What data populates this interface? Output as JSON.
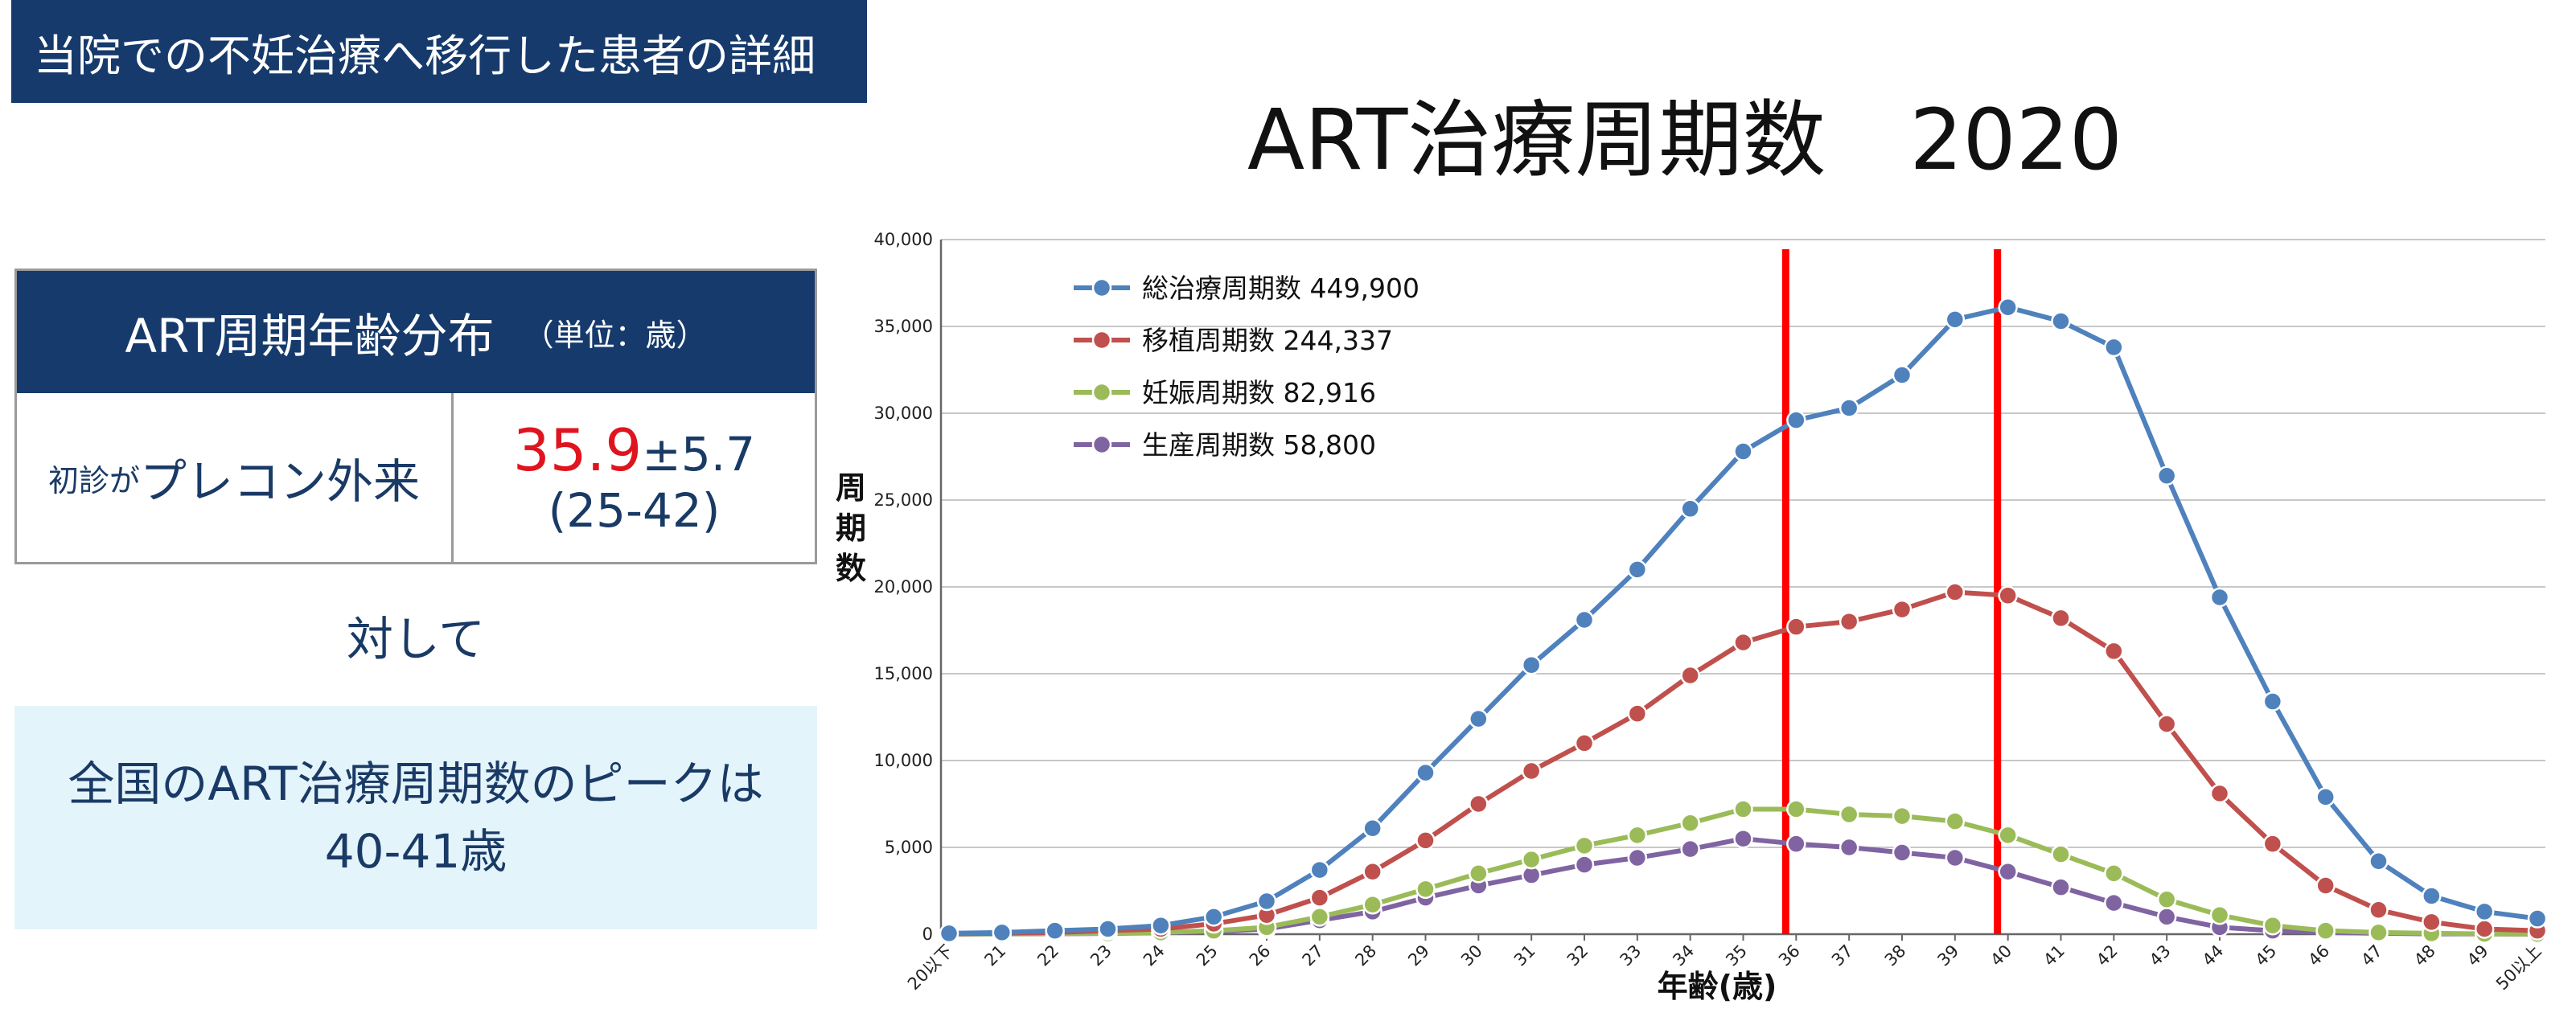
{
  "header": {
    "title": "当院での不妊治療へ移行した患者の詳細"
  },
  "info_table": {
    "header_main": "ART周期年齢分布",
    "header_unit": "（単位：歳）",
    "label_small": "初診が",
    "label_main": "プレコン外来",
    "value_main": "35.9",
    "value_sd": "±5.7",
    "value_range": "(25-42)"
  },
  "versus_text": "対して",
  "peak_box": {
    "line1": "全国のART治療周期数のピークは",
    "line2": "40-41歳"
  },
  "chart_data": {
    "type": "line",
    "title": "ART治療周期数　2020",
    "xlabel": "年齢(歳)",
    "ylabel": "周期数",
    "ylim": [
      0,
      40000
    ],
    "yticks": [
      "0",
      "5,000",
      "10,000",
      "15,000",
      "20,000",
      "25,000",
      "30,000",
      "35,000",
      "40,000"
    ],
    "grid": true,
    "legend_position": "top-left",
    "categories": [
      "20以下",
      "21",
      "22",
      "23",
      "24",
      "25",
      "26",
      "27",
      "28",
      "29",
      "30",
      "31",
      "32",
      "33",
      "34",
      "35",
      "36",
      "37",
      "38",
      "39",
      "40",
      "41",
      "42",
      "43",
      "44",
      "45",
      "46",
      "47",
      "48",
      "49",
      "50以上"
    ],
    "series": [
      {
        "name": "総治療周期数 449,900",
        "color": "#4f81bd",
        "values": [
          50,
          100,
          200,
          300,
          500,
          1000,
          1900,
          3700,
          6100,
          9300,
          12400,
          15500,
          18100,
          21000,
          24500,
          27800,
          29600,
          30300,
          32200,
          35400,
          36100,
          35300,
          33800,
          26400,
          19400,
          13400,
          7900,
          4200,
          2200,
          1300,
          900
        ]
      },
      {
        "name": "移植周期数 244,337",
        "color": "#c0504d",
        "values": [
          20,
          60,
          100,
          200,
          300,
          600,
          1100,
          2100,
          3600,
          5400,
          7500,
          9400,
          11000,
          12700,
          14900,
          16800,
          17700,
          18000,
          18700,
          19700,
          19500,
          18200,
          16300,
          12100,
          8100,
          5200,
          2800,
          1400,
          700,
          300,
          200
        ]
      },
      {
        "name": "妊娠周期数 82,916",
        "color": "#9bbb59",
        "values": [
          10,
          20,
          30,
          50,
          100,
          200,
          400,
          1000,
          1700,
          2600,
          3500,
          4300,
          5100,
          5700,
          6400,
          7200,
          7200,
          6900,
          6800,
          6500,
          5700,
          4600,
          3500,
          2000,
          1100,
          500,
          200,
          100,
          50,
          20,
          10
        ]
      },
      {
        "name": "生産周期数 58,800",
        "color": "#8064a2",
        "values": [
          5,
          15,
          25,
          40,
          80,
          150,
          300,
          800,
          1300,
          2100,
          2800,
          3400,
          4000,
          4400,
          4900,
          5500,
          5200,
          5000,
          4700,
          4400,
          3600,
          2700,
          1800,
          1000,
          400,
          200,
          100,
          50,
          20,
          10,
          5
        ]
      }
    ],
    "markers_at": [
      "36",
      "40"
    ],
    "marker_color": "#ff0000"
  }
}
